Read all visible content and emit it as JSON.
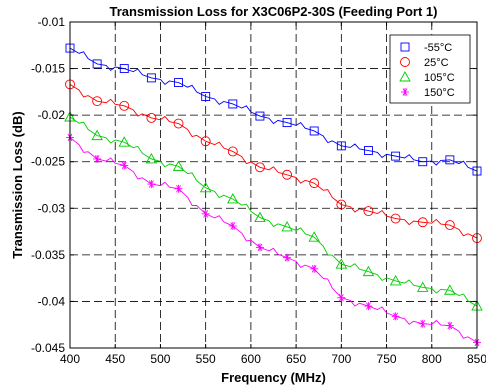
{
  "chart_data": {
    "type": "line",
    "title": "Transmission Loss for X3C06P2-30S (Feeding Port 1)",
    "xlabel": "Frequency (MHz)",
    "ylabel": "Transmission Loss (dB)",
    "xlim": [
      400,
      850
    ],
    "ylim": [
      -0.045,
      -0.01
    ],
    "xticks": [
      400,
      450,
      500,
      550,
      600,
      650,
      700,
      750,
      800,
      850
    ],
    "yticks": [
      -0.01,
      -0.015,
      -0.02,
      -0.025,
      -0.03,
      -0.035,
      -0.04,
      -0.045
    ],
    "xtick_labels": [
      "400",
      "450",
      "500",
      "550",
      "600",
      "650",
      "700",
      "750",
      "800",
      "850"
    ],
    "ytick_labels": [
      "-0.01",
      "-0.015",
      "-0.02",
      "-0.025",
      "-0.03",
      "-0.035",
      "-0.04",
      "-0.045"
    ],
    "grid": true,
    "legend_position": "top-right",
    "series": [
      {
        "name": "-55°C",
        "color": "#0000ff",
        "marker": "square",
        "x": [
          400,
          430,
          460,
          490,
          520,
          550,
          580,
          610,
          640,
          670,
          700,
          730,
          760,
          790,
          820,
          850
        ],
        "y": [
          -0.0128,
          -0.0145,
          -0.015,
          -0.016,
          -0.0165,
          -0.018,
          -0.0188,
          -0.0201,
          -0.0208,
          -0.0217,
          -0.0233,
          -0.0238,
          -0.0244,
          -0.025,
          -0.0248,
          -0.026
        ]
      },
      {
        "name": "25°C",
        "color": "#ff0000",
        "marker": "circle",
        "x": [
          400,
          430,
          460,
          490,
          520,
          550,
          580,
          610,
          640,
          670,
          700,
          730,
          760,
          790,
          820,
          850
        ],
        "y": [
          -0.0167,
          -0.0185,
          -0.019,
          -0.0203,
          -0.0209,
          -0.0228,
          -0.0239,
          -0.0256,
          -0.0264,
          -0.0273,
          -0.0296,
          -0.0303,
          -0.0311,
          -0.0315,
          -0.0318,
          -0.0332
        ]
      },
      {
        "name": "105°C",
        "color": "#00cc00",
        "marker": "triangle",
        "x": [
          400,
          430,
          460,
          490,
          520,
          550,
          580,
          610,
          640,
          670,
          700,
          730,
          760,
          790,
          820,
          850
        ],
        "y": [
          -0.0202,
          -0.0222,
          -0.0229,
          -0.0247,
          -0.0255,
          -0.0278,
          -0.029,
          -0.031,
          -0.032,
          -0.0331,
          -0.036,
          -0.0368,
          -0.0378,
          -0.0385,
          -0.0388,
          -0.0405
        ]
      },
      {
        "name": "150°C",
        "color": "#ff00ff",
        "marker": "asterisk",
        "x": [
          400,
          430,
          460,
          490,
          520,
          550,
          580,
          610,
          640,
          670,
          700,
          730,
          760,
          790,
          820,
          850
        ],
        "y": [
          -0.0224,
          -0.0247,
          -0.0254,
          -0.0274,
          -0.0279,
          -0.0306,
          -0.0319,
          -0.0342,
          -0.0353,
          -0.0365,
          -0.0396,
          -0.0405,
          -0.0416,
          -0.0424,
          -0.0426,
          -0.0444
        ]
      }
    ]
  }
}
